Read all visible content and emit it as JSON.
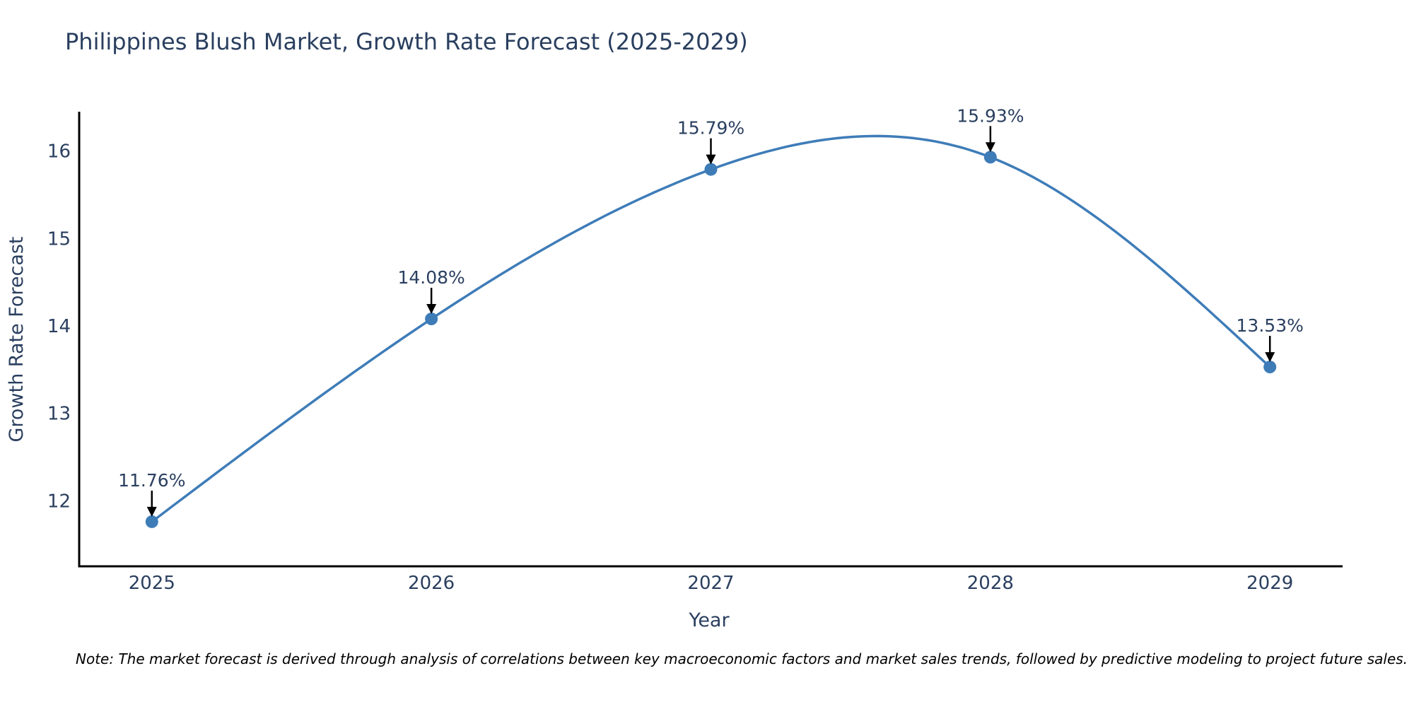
{
  "title": "Philippines Blush Market, Growth Rate Forecast (2025-2029)",
  "note": "Note: The market forecast is derived through analysis of correlations between key macroeconomic factors and market sales trends, followed by predictive modeling to project future sales.",
  "chart_data": {
    "type": "line",
    "title": "Philippines Blush Market, Growth Rate Forecast (2025-2029)",
    "xlabel": "Year",
    "ylabel": "Growth Rate Forecast",
    "x": [
      2025,
      2026,
      2027,
      2028,
      2029
    ],
    "values": [
      11.76,
      14.08,
      15.79,
      15.93,
      13.53
    ],
    "point_labels": [
      "11.76%",
      "14.08%",
      "15.79%",
      "15.93%",
      "13.53%"
    ],
    "x_tick_labels": [
      "2025",
      "2026",
      "2027",
      "2028",
      "2029"
    ],
    "y_ticks": [
      12,
      13,
      14,
      15,
      16
    ],
    "xlim": [
      2024.74,
      2029.26
    ],
    "ylim": [
      11.25,
      16.45
    ],
    "line_shape": "spline",
    "grid": false,
    "legend": "none",
    "colors": {
      "line": "#3e7cb8",
      "marker": "#3e7cb8",
      "axis": "#000000",
      "text": "#2a3f5f",
      "annotation_arrow": "#000000",
      "background": "#ffffff"
    }
  }
}
